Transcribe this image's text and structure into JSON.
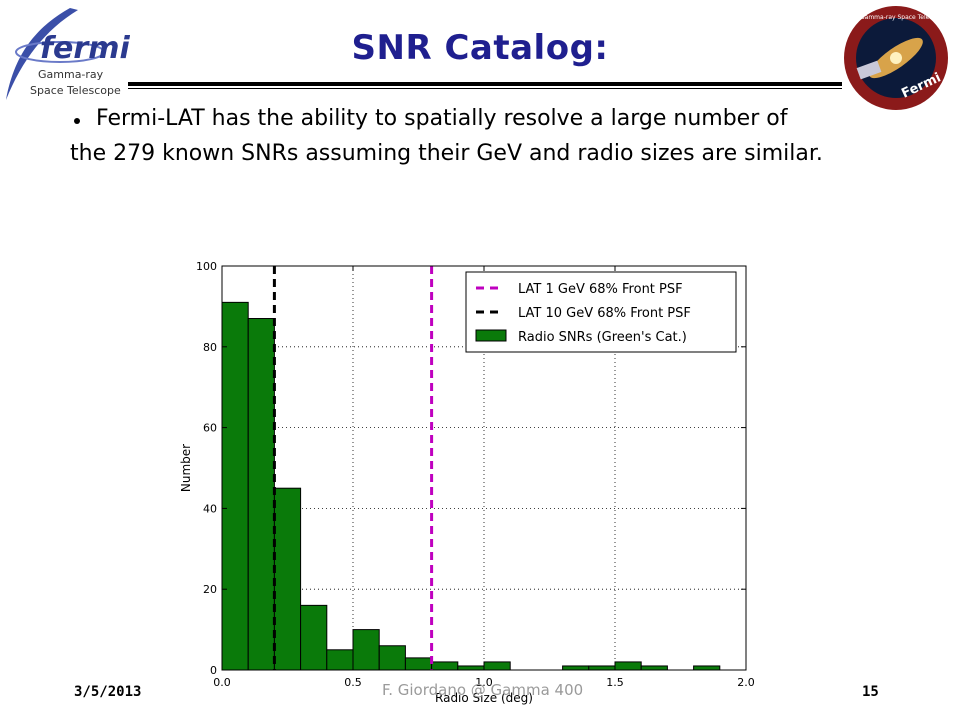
{
  "slide": {
    "title": "SNR Catalog:",
    "bullet": "Fermi-LAT has the ability to spatially resolve a large number of",
    "bullet_cont": "the 279 known SNRs assuming their GeV and radio sizes are similar.",
    "logo_left": {
      "name": "fermi",
      "line2": "Gamma-ray",
      "line3": "Space Telescope"
    },
    "logo_right": {
      "name": "Fermi",
      "ring": "Gamma-ray Space Telescope"
    },
    "footer": {
      "date": "3/5/2013",
      "center": "F. Giordano @ Gamma 400",
      "page": "15"
    }
  },
  "colors": {
    "title": "#1f1f8f",
    "bars": "#0a7a0a",
    "lat1": "#bf00bf",
    "lat10": "#000000"
  },
  "chart_data": {
    "type": "bar",
    "xlabel": "Radio Size (deg)",
    "ylabel": "Number",
    "xlim": [
      0.0,
      2.0
    ],
    "ylim": [
      0,
      100
    ],
    "xticks": [
      "0.0",
      "0.5",
      "1.0",
      "1.5",
      "2.0"
    ],
    "yticks": [
      "0",
      "20",
      "40",
      "60",
      "80",
      "100"
    ],
    "bin_width": 0.1,
    "bins": [
      {
        "x0": 0.0,
        "value": 91
      },
      {
        "x0": 0.1,
        "value": 87
      },
      {
        "x0": 0.2,
        "value": 45
      },
      {
        "x0": 0.3,
        "value": 16
      },
      {
        "x0": 0.4,
        "value": 5
      },
      {
        "x0": 0.5,
        "value": 10
      },
      {
        "x0": 0.6,
        "value": 6
      },
      {
        "x0": 0.7,
        "value": 3
      },
      {
        "x0": 0.8,
        "value": 2
      },
      {
        "x0": 0.9,
        "value": 1
      },
      {
        "x0": 1.0,
        "value": 2
      },
      {
        "x0": 1.3,
        "value": 1
      },
      {
        "x0": 1.4,
        "value": 1
      },
      {
        "x0": 1.5,
        "value": 2
      },
      {
        "x0": 1.6,
        "value": 1
      },
      {
        "x0": 1.8,
        "value": 1
      }
    ],
    "lines": [
      {
        "name": "LAT 1 GeV 68% Front PSF",
        "x": 0.8,
        "color": "#bf00bf"
      },
      {
        "name": "LAT 10 GeV 68% Front PSF",
        "x": 0.2,
        "color": "#000000"
      }
    ],
    "bar_series_name": "Radio SNRs (Green's Cat.)",
    "legend_position": "top-right"
  }
}
